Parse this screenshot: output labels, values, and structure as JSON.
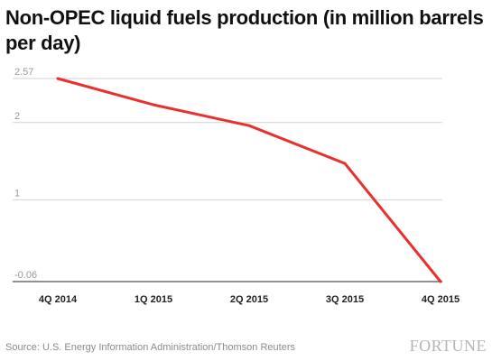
{
  "source": "Source: U.S. Energy Information Administration/Thomson Reuters",
  "logo": "FORTUNE",
  "chart_data": {
    "type": "line",
    "title": "Non-OPEC liquid fuels production (in million barrels per day)",
    "categories": [
      "4Q 2014",
      "1Q 2015",
      "2Q 2015",
      "3Q 2015",
      "4Q 2015"
    ],
    "series": [
      {
        "values": [
          2.57,
          2.23,
          1.96,
          1.47,
          -0.06
        ],
        "color": "#e8312f"
      }
    ],
    "yticks": [
      {
        "value": 2.57,
        "label": "2.57"
      },
      {
        "value": 2,
        "label": "2"
      },
      {
        "value": 1,
        "label": "1"
      },
      {
        "value": -0.06,
        "label": "-0.06"
      }
    ],
    "ylim": [
      -0.06,
      2.57
    ],
    "grid": true,
    "legend": "none"
  }
}
